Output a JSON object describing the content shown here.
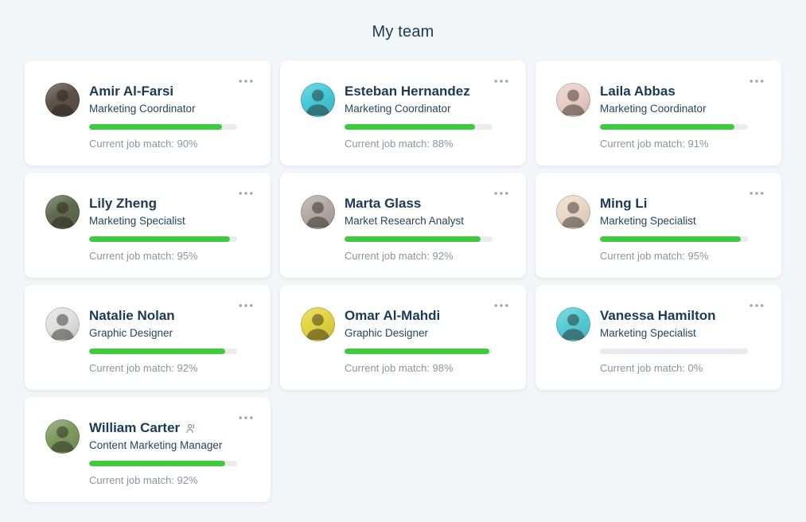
{
  "page": {
    "title": "My team"
  },
  "colors": {
    "page_bg": "#f3f6f9",
    "card_bg": "#ffffff",
    "heading_text": "#1b3a57",
    "name_text": "#1b3a57",
    "role_text": "#27455e",
    "muted_text": "#8a959f",
    "progress_fill": "#3ecc3e",
    "progress_track": "#e9ebee",
    "menu_dots": "#97a3ae",
    "team_icon": "#8a959f"
  },
  "team": {
    "members": [
      {
        "name": "Amir Al-Farsi",
        "role": "Marketing Coordinator",
        "match_percent": 90,
        "match_text": "Current job match: 90%",
        "avatar_bg": "#5c5248",
        "has_team_icon": false
      },
      {
        "name": "Esteban Hernandez",
        "role": "Marketing Coordinator",
        "match_percent": 88,
        "match_text": "Current job match: 88%",
        "avatar_bg": "#45c8d8",
        "has_team_icon": false
      },
      {
        "name": "Laila Abbas",
        "role": "Marketing Coordinator",
        "match_percent": 91,
        "match_text": "Current job match: 91%",
        "avatar_bg": "#e8cdc5",
        "has_team_icon": false
      },
      {
        "name": "Lily Zheng",
        "role": "Marketing Specialist",
        "match_percent": 95,
        "match_text": "Current job match: 95%",
        "avatar_bg": "#5f6b4f",
        "has_team_icon": false
      },
      {
        "name": "Marta Glass",
        "role": "Market Research Analyst",
        "match_percent": 92,
        "match_text": "Current job match: 92%",
        "avatar_bg": "#b3a9a4",
        "has_team_icon": false
      },
      {
        "name": "Ming Li",
        "role": "Marketing Specialist",
        "match_percent": 95,
        "match_text": "Current job match: 95%",
        "avatar_bg": "#ead9c8",
        "has_team_icon": false
      },
      {
        "name": "Natalie Nolan",
        "role": "Graphic Designer",
        "match_percent": 92,
        "match_text": "Current job match: 92%",
        "avatar_bg": "#dfe0e0",
        "has_team_icon": false
      },
      {
        "name": "Omar Al-Mahdi",
        "role": "Graphic Designer",
        "match_percent": 98,
        "match_text": "Current job match: 98%",
        "avatar_bg": "#e3d33f",
        "has_team_icon": false
      },
      {
        "name": "Vanessa Hamilton",
        "role": "Marketing Specialist",
        "match_percent": 0,
        "match_text": "Current job match: 0%",
        "avatar_bg": "#55cdd6",
        "has_team_icon": false
      },
      {
        "name": "William Carter",
        "role": "Content Marketing Manager",
        "match_percent": 92,
        "match_text": "Current job match: 92%",
        "avatar_bg": "#7d9a5e",
        "has_team_icon": true
      }
    ]
  }
}
